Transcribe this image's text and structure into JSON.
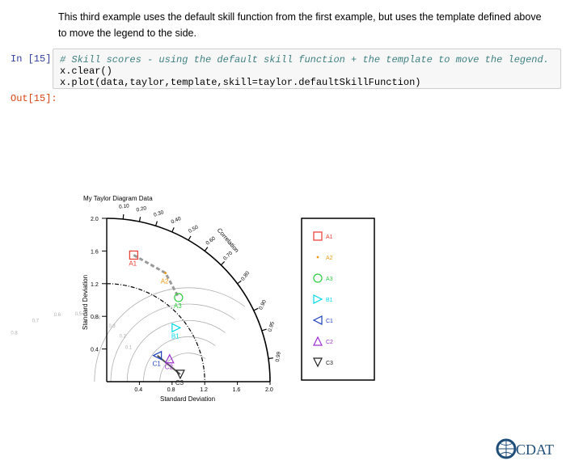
{
  "intro_text": "This third example uses the default skill function from the first example, but uses the template defined above to move the legend to the side.",
  "cell": {
    "in_prompt": "In [15]:",
    "out_prompt": "Out[15]:",
    "code_lines": [
      "# Skill scores - using the default skill function + the template to move the legend.",
      "x.clear()",
      "x.plot(data,taylor,template,skill=taylor.defaultSkillFunction)"
    ]
  },
  "chart_data": {
    "type": "scatter",
    "title": "My Taylor Diagram Data",
    "xlabel": "Standard Deviation",
    "ylabel": "Standard Deviation",
    "corr_axis_label": "Correlation",
    "x_ticks": [
      "0.4",
      "0.8",
      "1.2",
      "1.6",
      "2.0"
    ],
    "y_ticks": [
      "2.0",
      "1.6",
      "1.2",
      "0.8",
      "0.4"
    ],
    "corr_ticks": [
      "0.10",
      "0.20",
      "0.30",
      "0.40",
      "0.50",
      "0.60",
      "0.70",
      "0.80",
      "0.90",
      "0.95",
      "0.99"
    ],
    "xlim": [
      0,
      2.0
    ],
    "ylim": [
      0,
      2.0
    ],
    "points": [
      {
        "name": "A1",
        "x": 0.33,
        "y": 1.55,
        "marker": "square",
        "color": "#e8392b"
      },
      {
        "name": "A2",
        "x": 0.72,
        "y": 1.33,
        "marker": "dot",
        "color": "#f39c12"
      },
      {
        "name": "A3",
        "x": 0.88,
        "y": 1.03,
        "marker": "circle",
        "color": "#2ecc40"
      },
      {
        "name": "B1",
        "x": 0.85,
        "y": 0.66,
        "marker": "triangle-right",
        "color": "#00d8e8"
      },
      {
        "name": "C1",
        "x": 0.62,
        "y": 0.32,
        "marker": "triangle-left",
        "color": "#1f3fbf"
      },
      {
        "name": "C2",
        "x": 0.77,
        "y": 0.28,
        "marker": "triangle-up",
        "color": "#9b30d0"
      },
      {
        "name": "C3",
        "x": 0.9,
        "y": 0.09,
        "marker": "triangle-down",
        "color": "#222222"
      }
    ],
    "legend": [
      "A1",
      "A2",
      "A3",
      "B1",
      "C1",
      "C2",
      "C3"
    ],
    "legend_position": "right",
    "skill_label_values": [
      "0.1",
      "0.2",
      "0.3",
      "0.4",
      "0.5",
      "0.6",
      "0.7",
      "0.8",
      "0.9",
      "0.95"
    ]
  },
  "logo_text": "CDAT",
  "colors": {
    "prompt_in": "#303f9f",
    "prompt_out": "#d84315",
    "logo": "#1f4e79"
  }
}
